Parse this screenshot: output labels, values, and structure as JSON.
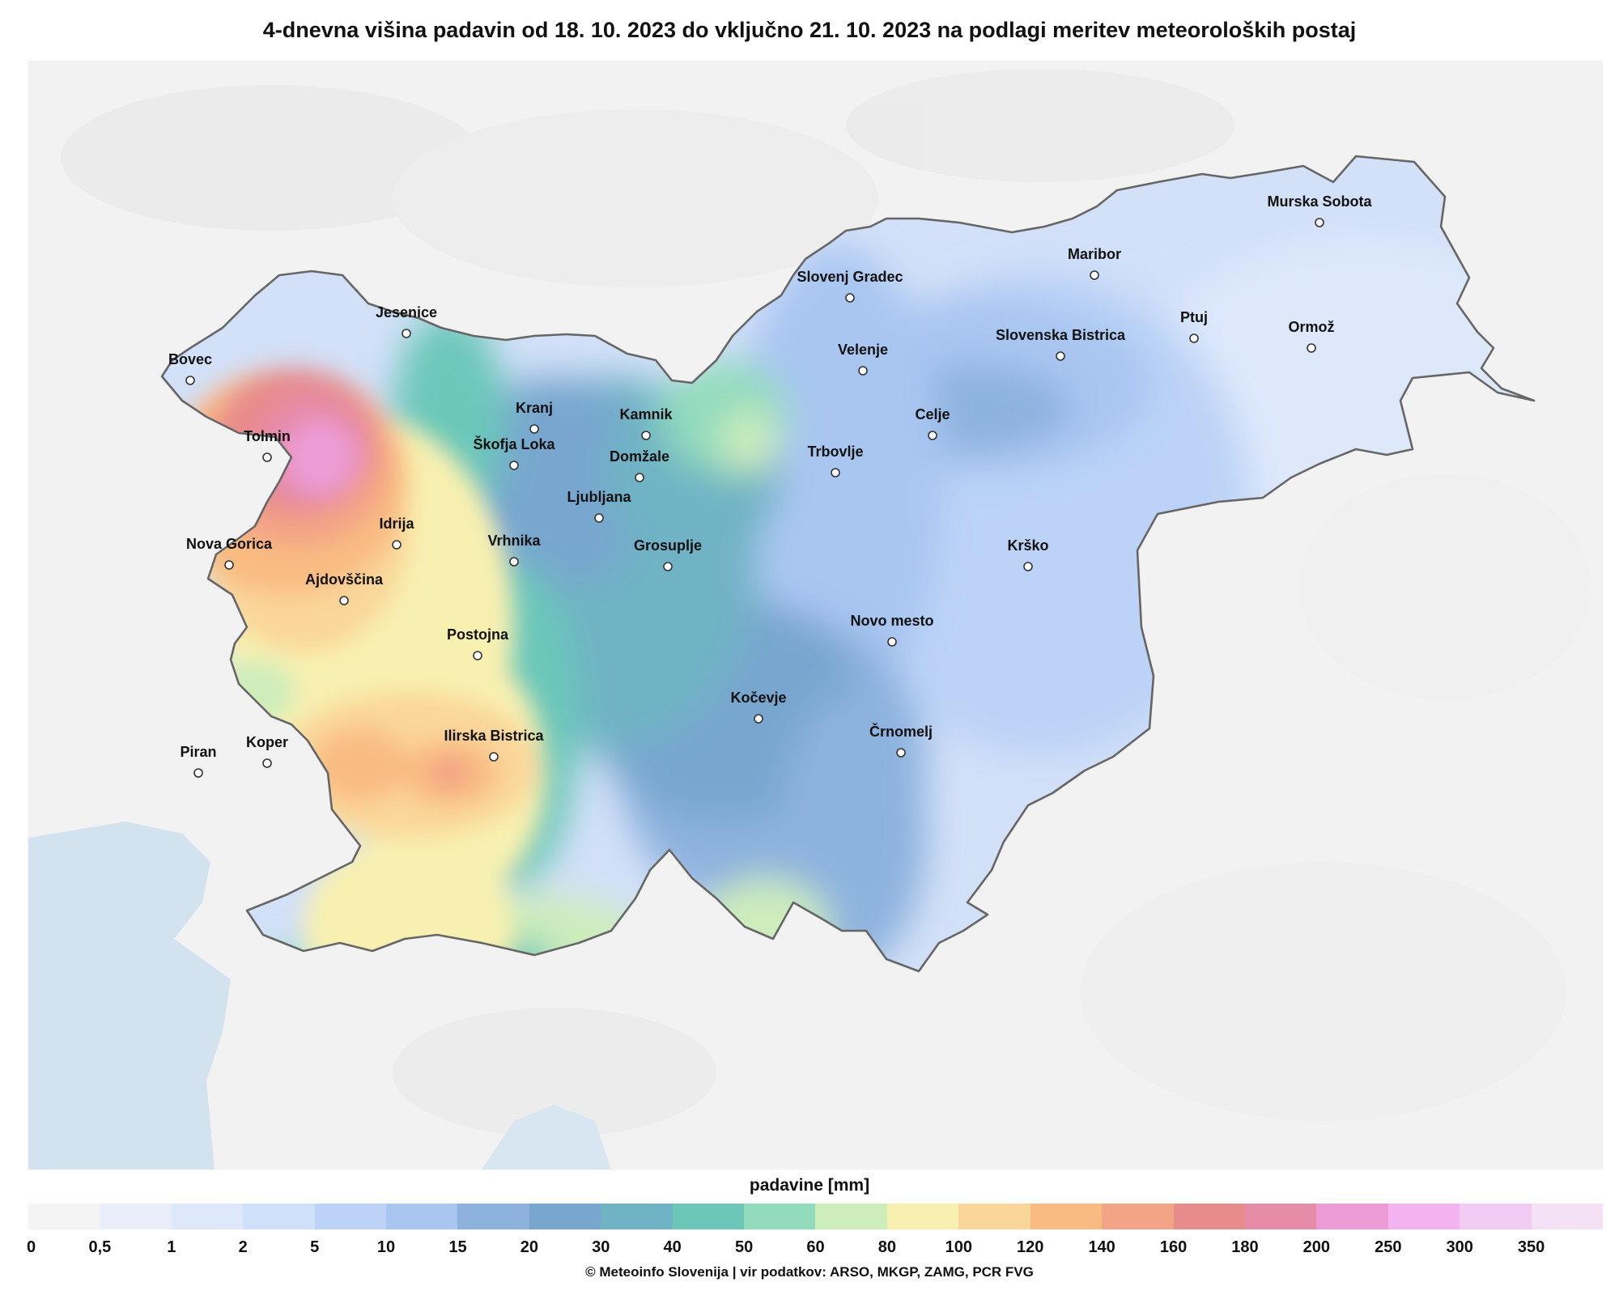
{
  "title": "4-dnevna višina padavin od 18. 10. 2023 do vključno 21. 10. 2023 na podlagi meritev meteoroloških postaj",
  "legend": {
    "title": "padavine [mm]",
    "ticks": [
      "0",
      "0,5",
      "1",
      "2",
      "5",
      "10",
      "15",
      "20",
      "30",
      "40",
      "50",
      "60",
      "80",
      "100",
      "120",
      "140",
      "160",
      "180",
      "200",
      "250",
      "300",
      "350"
    ],
    "colors": [
      "#f4f4f4",
      "#e9eefa",
      "#dde8fb",
      "#cfe0fb",
      "#bcd3f7",
      "#a9c6f1",
      "#8db2de",
      "#78a6cf",
      "#6fb3c4",
      "#6cc7b9",
      "#92dbbd",
      "#cdedbb",
      "#f8f0b0",
      "#fad69a",
      "#f9bb82",
      "#f3a386",
      "#e78b8b",
      "#e68ba8",
      "#ec9bd6",
      "#f3b2f0",
      "#f1cbf1",
      "#f5e1f6"
    ]
  },
  "cities": [
    {
      "name": "Murska Sobota"
    },
    {
      "name": "Maribor"
    },
    {
      "name": "Slovenj Gradec"
    },
    {
      "name": "Ptuj"
    },
    {
      "name": "Ormož"
    },
    {
      "name": "Jesenice"
    },
    {
      "name": "Velenje"
    },
    {
      "name": "Slovenska Bistrica"
    },
    {
      "name": "Bovec"
    },
    {
      "name": "Kranj"
    },
    {
      "name": "Kamnik"
    },
    {
      "name": "Celje"
    },
    {
      "name": "Tolmin"
    },
    {
      "name": "Škofja Loka"
    },
    {
      "name": "Domžale"
    },
    {
      "name": "Trbovlje"
    },
    {
      "name": "Ljubljana"
    },
    {
      "name": "Idrija"
    },
    {
      "name": "Nova Gorica"
    },
    {
      "name": "Vrhnika"
    },
    {
      "name": "Grosuplje"
    },
    {
      "name": "Krško"
    },
    {
      "name": "Ajdovščina"
    },
    {
      "name": "Novo mesto"
    },
    {
      "name": "Postojna"
    },
    {
      "name": "Kočevje"
    },
    {
      "name": "Ilirska Bistrica"
    },
    {
      "name": "Črnomelj"
    },
    {
      "name": "Koper"
    },
    {
      "name": "Piran"
    }
  ],
  "credit": "© Meteoinfo Slovenija  |  vir podatkov: ARSO, MKGP, ZAMG, PCR FVG"
}
